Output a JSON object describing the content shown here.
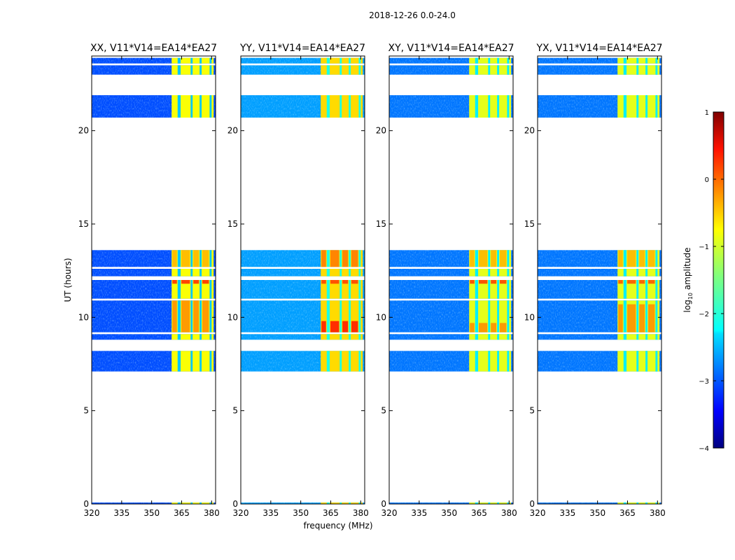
{
  "chart_data": {
    "type": "heatmap",
    "suptitle": "2018-12-26 0.0-24.0",
    "xlabel": "frequency (MHz)",
    "ylabel": "UT (hours)",
    "xlim": [
      320,
      382
    ],
    "ylim": [
      0,
      24
    ],
    "xticks": [
      320,
      335,
      350,
      365,
      380
    ],
    "yticks": [
      0,
      5,
      10,
      15,
      20
    ],
    "shared_data_blocks_ut_hours": [
      [
        0.0,
        0.08
      ],
      [
        7.1,
        8.2
      ],
      [
        8.8,
        9.1
      ],
      [
        9.2,
        10.9
      ],
      [
        11.0,
        12.0
      ],
      [
        12.2,
        12.6
      ],
      [
        12.7,
        13.6
      ],
      [
        20.7,
        21.9
      ],
      [
        23.0,
        23.5
      ],
      [
        23.6,
        23.9
      ]
    ],
    "band_start_mhz": 360,
    "band_end_mhz": 381,
    "band_stripes": [
      {
        "from": 363,
        "to": 364.5
      },
      {
        "from": 369.5,
        "to": 370.5
      },
      {
        "from": 374,
        "to": 375
      },
      {
        "from": 379,
        "to": 380
      }
    ],
    "panels": [
      {
        "title": "XX, V11*V14=EA14*EA27",
        "background_log10": -3.0,
        "band_log10": -0.9,
        "hot_spots": [
          {
            "ut": [
              11.8,
              12.0
            ],
            "log10": 0.2
          },
          {
            "ut": [
              9.2,
              10.9
            ],
            "log10": -0.3
          },
          {
            "ut": [
              12.7,
              13.6
            ],
            "log10": -0.5
          }
        ]
      },
      {
        "title": "YY, V11*V14=EA14*EA27",
        "background_log10": -2.6,
        "band_log10": -0.7,
        "hot_spots": [
          {
            "ut": [
              9.2,
              9.8
            ],
            "log10": 0.3
          },
          {
            "ut": [
              11.8,
              12.0
            ],
            "log10": 0.1
          },
          {
            "ut": [
              12.7,
              13.6
            ],
            "log10": -0.2
          }
        ]
      },
      {
        "title": "XY, V11*V14=EA14*EA27",
        "background_log10": -2.8,
        "band_log10": -1.0,
        "hot_spots": [
          {
            "ut": [
              11.8,
              12.0
            ],
            "log10": 0.1
          },
          {
            "ut": [
              9.2,
              9.7
            ],
            "log10": -0.3
          },
          {
            "ut": [
              12.7,
              13.6
            ],
            "log10": -0.5
          }
        ]
      },
      {
        "title": "YX, V11*V14=EA14*EA27",
        "background_log10": -2.8,
        "band_log10": -1.0,
        "hot_spots": [
          {
            "ut": [
              11.8,
              12.0
            ],
            "log10": 0.0
          },
          {
            "ut": [
              9.2,
              10.7
            ],
            "log10": -0.3
          },
          {
            "ut": [
              12.7,
              13.6
            ],
            "log10": -0.5
          }
        ]
      }
    ],
    "colorbar": {
      "label": "log10 amplitude",
      "label_base": "log",
      "label_sub": "10",
      "label_rest": " amplitude",
      "min": -4,
      "max": 1,
      "ticks": [
        "1",
        "0",
        "−1",
        "−2",
        "−3",
        "−4"
      ],
      "colormap": "jet"
    }
  }
}
